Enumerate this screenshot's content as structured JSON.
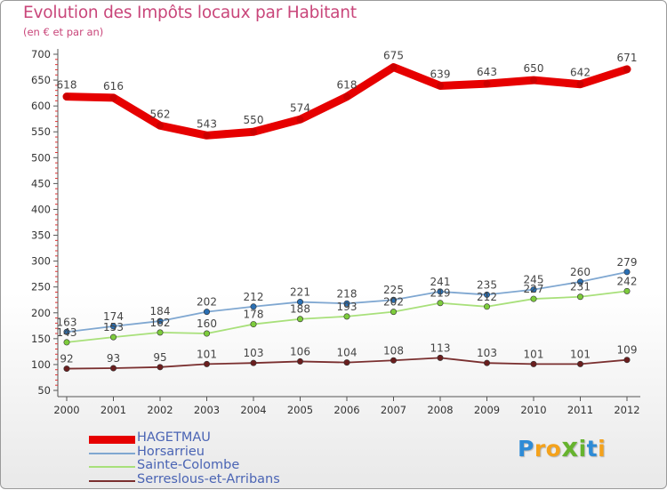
{
  "title": "Evolution des Impôts locaux par Habitant",
  "subtitle": "(en € et par an)",
  "logo": {
    "text": "Proxiti",
    "letters": [
      "P",
      "r",
      "o",
      "x",
      "i",
      "t",
      "i"
    ],
    "colors": [
      "#2e8bd6",
      "#f4a21c",
      "#f4a21c",
      "#66b32e",
      "#66b32e",
      "#2e8bd6",
      "#f4a21c"
    ]
  },
  "chart_data": {
    "type": "line",
    "title": "Evolution des Impôts locaux par Habitant",
    "subtitle": "(en € et par an)",
    "x": [
      "2000",
      "2001",
      "2002",
      "2003",
      "2004",
      "2005",
      "2006",
      "2007",
      "2008",
      "2009",
      "2010",
      "2011",
      "2012"
    ],
    "ylim": [
      50,
      700
    ],
    "yticks": [
      50,
      100,
      150,
      200,
      250,
      300,
      350,
      400,
      450,
      500,
      550,
      600,
      650,
      700
    ],
    "grid": false,
    "legend_position": "bottom-left",
    "series": [
      {
        "name": "HAGETMAU",
        "color": "#e60000",
        "marker": "#cc0000",
        "values": [
          618,
          616,
          562,
          543,
          550,
          574,
          618,
          675,
          639,
          643,
          650,
          642,
          671
        ]
      },
      {
        "name": "Horsarrieu",
        "color": "#7fa7d1",
        "marker": "#2a6fb3",
        "values": [
          163,
          174,
          184,
          202,
          212,
          221,
          218,
          225,
          241,
          235,
          245,
          260,
          279
        ]
      },
      {
        "name": "Sainte-Colombe",
        "color": "#a8e07a",
        "marker": "#7dcc3c",
        "values": [
          143,
          153,
          162,
          160,
          178,
          188,
          193,
          202,
          219,
          212,
          227,
          231,
          242
        ]
      },
      {
        "name": "Serreslous-et-Arribans",
        "color": "#7a2f2f",
        "marker": "#6a1e1e",
        "values": [
          92,
          93,
          95,
          101,
          103,
          106,
          104,
          108,
          113,
          103,
          101,
          101,
          109
        ]
      }
    ]
  }
}
